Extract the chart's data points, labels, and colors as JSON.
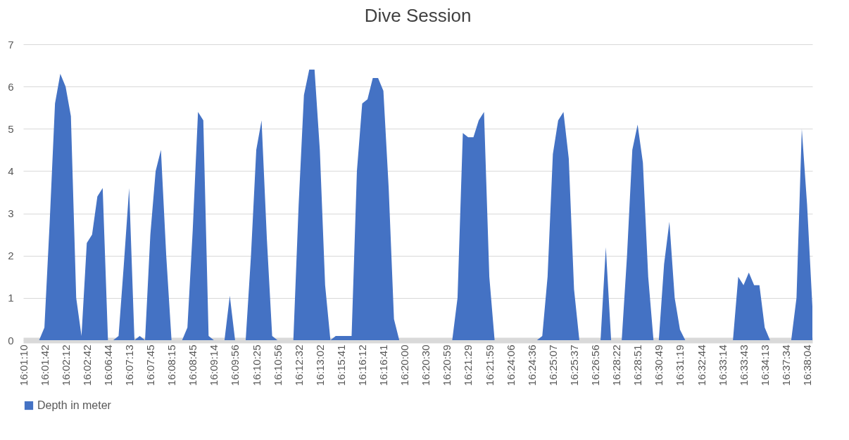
{
  "chart_data": {
    "type": "area",
    "title": "Dive Session",
    "categories": [
      "16:01:10",
      null,
      null,
      null,
      "16:01:42",
      null,
      null,
      null,
      "16:02:12",
      null,
      null,
      null,
      "16:02:42",
      null,
      null,
      null,
      "16:06:44",
      null,
      null,
      null,
      "16:07:13",
      null,
      null,
      null,
      "16:07:45",
      null,
      null,
      null,
      "16:08:15",
      null,
      null,
      null,
      "16:08:45",
      null,
      null,
      null,
      "16:09:14",
      null,
      null,
      null,
      "16:09:56",
      null,
      null,
      null,
      "16:10:25",
      null,
      null,
      null,
      "16:10:56",
      null,
      null,
      null,
      "16:12:32",
      null,
      null,
      null,
      "16:13:02",
      null,
      null,
      null,
      "16:15:41",
      null,
      null,
      null,
      "16:16:12",
      null,
      null,
      null,
      "16:16:41",
      null,
      null,
      null,
      "16:20:00",
      null,
      null,
      null,
      "16:20:30",
      null,
      null,
      null,
      "16:20:59",
      null,
      null,
      null,
      "16:21:29",
      null,
      null,
      null,
      "16:21:59",
      null,
      null,
      null,
      "16:24:06",
      null,
      null,
      null,
      "16:24:36",
      null,
      null,
      null,
      "16:25:07",
      null,
      null,
      null,
      "16:25:37",
      null,
      null,
      null,
      "16:26:56",
      null,
      null,
      null,
      "16:28:22",
      null,
      null,
      null,
      "16:28:51",
      null,
      null,
      null,
      "16:30:49",
      null,
      null,
      null,
      "16:31:19",
      null,
      null,
      null,
      "16:32:44",
      null,
      null,
      null,
      "16:33:14",
      null,
      null,
      null,
      "16:33:43",
      null,
      null,
      null,
      "16:34:13",
      null,
      null,
      null,
      "16:37:34",
      null,
      null,
      null,
      "16:38:04",
      null
    ],
    "series": [
      {
        "name": "Depth in meter",
        "color": "#4472c4",
        "values": [
          0,
          0,
          0,
          0,
          0.3,
          2.8,
          5.6,
          6.3,
          6.0,
          5.3,
          1.0,
          0.1,
          2.3,
          2.5,
          3.4,
          3.6,
          0,
          0,
          0.1,
          1.8,
          3.6,
          0,
          0.1,
          0,
          2.5,
          4.0,
          4.5,
          2.0,
          0,
          0,
          0,
          0.3,
          2.6,
          5.4,
          5.2,
          0.1,
          0,
          0,
          0,
          1.05,
          0,
          0,
          0,
          2.0,
          4.5,
          5.2,
          2.4,
          0.1,
          0,
          0,
          0,
          0,
          3.2,
          5.8,
          6.4,
          6.4,
          4.5,
          1.3,
          0,
          0.1,
          0.1,
          0.1,
          0.1,
          4.0,
          5.6,
          5.7,
          6.2,
          6.2,
          5.9,
          3.6,
          0.5,
          0,
          0,
          0,
          0,
          0,
          0,
          0,
          0,
          0,
          0,
          0,
          1.0,
          4.9,
          4.8,
          4.8,
          5.2,
          5.4,
          1.5,
          0,
          0,
          0,
          0,
          0,
          0,
          0,
          0,
          0,
          0.1,
          1.5,
          4.4,
          5.2,
          5.4,
          4.3,
          1.2,
          0,
          0,
          0,
          0,
          0,
          2.2,
          0,
          0,
          0,
          2.0,
          4.5,
          5.1,
          4.2,
          1.5,
          0,
          0,
          1.8,
          2.8,
          1.0,
          0.25,
          0,
          0,
          0,
          0,
          0,
          0,
          0,
          0,
          0,
          0,
          1.5,
          1.3,
          1.6,
          1.3,
          1.3,
          0.3,
          0,
          0,
          0,
          0,
          0,
          1.0,
          5.0,
          3.2,
          0.8
        ]
      }
    ],
    "ylim": [
      0,
      7
    ],
    "yticks": [
      0,
      1,
      2,
      3,
      4,
      5,
      6,
      7
    ],
    "grid": "y",
    "legend": "bottom"
  }
}
